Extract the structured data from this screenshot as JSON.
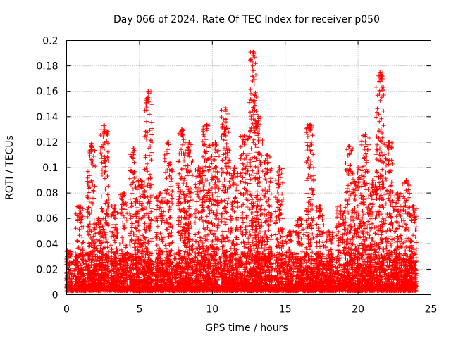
{
  "chart_data": {
    "type": "scatter",
    "title": "Day 066 of 2024, Rate Of TEC Index for receiver p050",
    "xlabel": "GPS time / hours",
    "ylabel": "ROTI / TECUs",
    "xlim": [
      0,
      25
    ],
    "ylim": [
      0,
      0.2
    ],
    "xticks": [
      "0",
      "5",
      "10",
      "15",
      "20",
      "25"
    ],
    "yticks": [
      "0",
      "0.02",
      "0.04",
      "0.06",
      "0.08",
      "0.1",
      "0.12",
      "0.14",
      "0.16",
      "0.18",
      "0.2"
    ],
    "grid": true,
    "marker": "+",
    "color": "#ff0000",
    "data_span_hours": [
      0,
      24
    ],
    "background_range": [
      0,
      0.03
    ],
    "activity_peaks": [
      {
        "x": 0.1,
        "y": 0.035
      },
      {
        "x": 0.9,
        "y": 0.07
      },
      {
        "x": 1.7,
        "y": 0.119
      },
      {
        "x": 2.2,
        "y": 0.06
      },
      {
        "x": 2.6,
        "y": 0.133
      },
      {
        "x": 3.3,
        "y": 0.07
      },
      {
        "x": 3.9,
        "y": 0.08
      },
      {
        "x": 4.6,
        "y": 0.115
      },
      {
        "x": 5.1,
        "y": 0.09
      },
      {
        "x": 5.6,
        "y": 0.16
      },
      {
        "x": 6.4,
        "y": 0.08
      },
      {
        "x": 7.0,
        "y": 0.12
      },
      {
        "x": 7.9,
        "y": 0.13
      },
      {
        "x": 8.4,
        "y": 0.12
      },
      {
        "x": 9.1,
        "y": 0.1
      },
      {
        "x": 9.6,
        "y": 0.134
      },
      {
        "x": 10.2,
        "y": 0.12
      },
      {
        "x": 10.9,
        "y": 0.147
      },
      {
        "x": 11.5,
        "y": 0.1
      },
      {
        "x": 12.2,
        "y": 0.125
      },
      {
        "x": 12.8,
        "y": 0.191
      },
      {
        "x": 13.2,
        "y": 0.14
      },
      {
        "x": 13.8,
        "y": 0.11
      },
      {
        "x": 14.6,
        "y": 0.1
      },
      {
        "x": 15.3,
        "y": 0.05
      },
      {
        "x": 16.0,
        "y": 0.06
      },
      {
        "x": 16.7,
        "y": 0.134
      },
      {
        "x": 17.4,
        "y": 0.07
      },
      {
        "x": 18.0,
        "y": 0.05
      },
      {
        "x": 18.8,
        "y": 0.07
      },
      {
        "x": 19.4,
        "y": 0.117
      },
      {
        "x": 20.0,
        "y": 0.1
      },
      {
        "x": 20.5,
        "y": 0.126
      },
      {
        "x": 21.0,
        "y": 0.09
      },
      {
        "x": 21.5,
        "y": 0.175
      },
      {
        "x": 22.1,
        "y": 0.12
      },
      {
        "x": 22.7,
        "y": 0.08
      },
      {
        "x": 23.3,
        "y": 0.09
      },
      {
        "x": 23.8,
        "y": 0.07
      }
    ]
  }
}
